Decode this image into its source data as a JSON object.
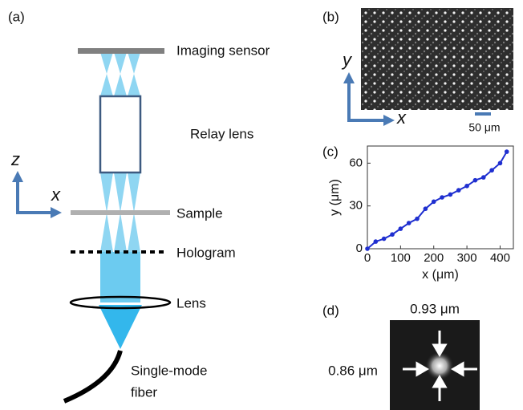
{
  "panel_labels": [
    "(a)",
    "(b)",
    "(c)",
    "(d)"
  ],
  "setup": {
    "axis_z": "z",
    "axis_x": "x",
    "components": [
      "Imaging sensor",
      "Relay lens",
      "Sample",
      "Hologram",
      "Lens"
    ],
    "fiber": [
      "Single-mode",
      "fiber"
    ]
  },
  "image_b": {
    "axis_y": "y",
    "axis_x": "x",
    "scale_bar": "50 μm"
  },
  "chart_data": {
    "type": "line",
    "xlabel": "x (μm)",
    "ylabel": "y (μm)",
    "x": [
      0,
      25,
      50,
      75,
      100,
      125,
      150,
      175,
      200,
      225,
      250,
      275,
      300,
      325,
      350,
      375,
      400,
      420
    ],
    "values": [
      0,
      5,
      7,
      10,
      14,
      18,
      21,
      28,
      33,
      36,
      38,
      41,
      44,
      48,
      50,
      55,
      60,
      68
    ],
    "color": "#1f2fd0",
    "xlim": [
      0,
      440
    ],
    "ylim": [
      0,
      72
    ],
    "xticks": [
      0,
      100,
      200,
      300,
      400
    ],
    "yticks": [
      0,
      30,
      60
    ]
  },
  "image_d": {
    "width": "0.93 μm",
    "height": "0.86 μm"
  }
}
